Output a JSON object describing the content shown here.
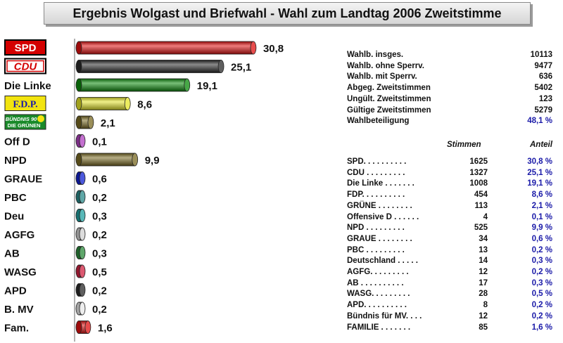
{
  "title": "Ergebnis Wolgast und Briefwahl -  Wahl zum Landtag 2006 Zweitstimme",
  "chart_data": {
    "type": "bar",
    "orientation": "horizontal",
    "title": "Ergebnis Wolgast und Briefwahl -  Wahl zum Landtag 2006 Zweitstimme",
    "categories": [
      "SPD",
      "CDU",
      "Die Linke",
      "F.D.P.",
      "BÜNDNIS 90 DIE GRÜNEN",
      "Off D",
      "NPD",
      "GRAUE",
      "PBC",
      "Deu",
      "AGFG",
      "AB",
      "WASG",
      "APD",
      "B. MV",
      "Fam."
    ],
    "values": [
      30.8,
      25.1,
      19.1,
      8.6,
      2.1,
      0.1,
      9.9,
      0.6,
      0.2,
      0.3,
      0.2,
      0.3,
      0.5,
      0.2,
      0.2,
      1.6
    ],
    "value_labels": [
      "30,8",
      "25,1",
      "19,1",
      "8,6",
      "2,1",
      "0,1",
      "9,9",
      "0,6",
      "0,2",
      "0,3",
      "0,2",
      "0,3",
      "0,5",
      "0,2",
      "0,2",
      "1,6"
    ],
    "colors": [
      "#e01010",
      "#2a2a2a",
      "#0a8a0a",
      "#e6e62a",
      "#7a6a22",
      "#b040c0",
      "#7a6a22",
      "#1020d0",
      "#2a8a8a",
      "#20a0a0",
      "#d0d0d0",
      "#2a8a3a",
      "#d02040",
      "#2a2a2a",
      "#e8e8e8",
      "#e01010"
    ],
    "logo_labels": {
      "SPD": "SPD",
      "CDU": "CDU",
      "F.D.P.": "F.D.P.",
      "GRUENE_1": "BÜNDNIS 90",
      "GRUENE_2": "DIE GRÜNEN"
    },
    "grid": false,
    "legend": "none"
  },
  "stats": [
    {
      "label": "Wahlb. insges.",
      "value": "10113",
      "pct": ""
    },
    {
      "label": "Wahlb. ohne Sperrv.",
      "value": "9477",
      "pct": ""
    },
    {
      "label": "Wahlb. mit Sperrv.",
      "value": "636",
      "pct": ""
    },
    {
      "label": "Abgeg. Zweitstimmen",
      "value": "5402",
      "pct": ""
    },
    {
      "label": "Ungült. Zweitstimmen",
      "value": "123",
      "pct": ""
    },
    {
      "label": "Gültige Zweitstimmen",
      "value": "5279",
      "pct": ""
    },
    {
      "label": "Wahlbeteiligung",
      "value": "",
      "pct": "48,1 %"
    }
  ],
  "results_header": {
    "stimmen": "Stimmen",
    "anteil": "Anteil"
  },
  "results": [
    {
      "label": "SPD. . . . . . . . . .",
      "votes": "1625",
      "pct": "30,8 %"
    },
    {
      "label": "CDU . . . . . . . . .",
      "votes": "1327",
      "pct": "25,1 %"
    },
    {
      "label": "Die Linke . . . . . . .",
      "votes": "1008",
      "pct": "19,1 %"
    },
    {
      "label": "FDP. . . . . . . . . .",
      "votes": "454",
      "pct": "8,6 %"
    },
    {
      "label": "GRÜNE . . . . . . . .",
      "votes": "113",
      "pct": "2,1 %"
    },
    {
      "label": "Offensive D . . . . . .",
      "votes": "4",
      "pct": "0,1 %"
    },
    {
      "label": "NPD . . . . . . . . .",
      "votes": "525",
      "pct": "9,9 %"
    },
    {
      "label": "GRAUE . . . . . . . .",
      "votes": "34",
      "pct": "0,6 %"
    },
    {
      "label": "PBC . . . . . . . . .",
      "votes": "13",
      "pct": "0,2 %"
    },
    {
      "label": "Deutschland . . . . .",
      "votes": "14",
      "pct": "0,3 %"
    },
    {
      "label": "AGFG. . . . . . . . .",
      "votes": "12",
      "pct": "0,2 %"
    },
    {
      "label": "AB . . . . . . . . . .",
      "votes": "17",
      "pct": "0,3 %"
    },
    {
      "label": "WASG. . . . . . . . .",
      "votes": "28",
      "pct": "0,5 %"
    },
    {
      "label": "APD. . . . . . . . . .",
      "votes": "8",
      "pct": "0,2 %"
    },
    {
      "label": "Bündnis für MV. . . .",
      "votes": "12",
      "pct": "0,2 %"
    },
    {
      "label": "FAMILIE . . . . . . .",
      "votes": "85",
      "pct": "1,6 %"
    }
  ]
}
